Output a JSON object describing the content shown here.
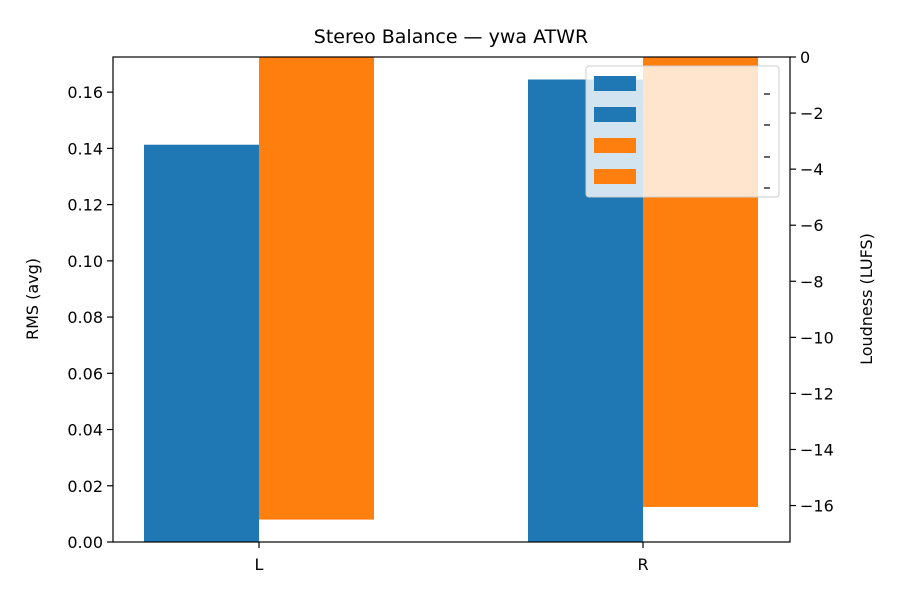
{
  "chart_data": {
    "type": "bar",
    "title": "Stereo Balance — ywa ATWR",
    "categories": [
      "L",
      "R"
    ],
    "left_axis": {
      "label": "RMS (avg)",
      "ylim": [
        0,
        0.1725
      ],
      "ticks": [
        0.0,
        0.02,
        0.04,
        0.06,
        0.08,
        0.1,
        0.12,
        0.14,
        0.16
      ],
      "tick_labels": [
        "0.00",
        "0.02",
        "0.04",
        "0.06",
        "0.08",
        "0.10",
        "0.12",
        "0.14",
        "0.16"
      ]
    },
    "right_axis": {
      "label": "Loudness (LUFS)",
      "ylim": [
        -17.3,
        0
      ],
      "ticks": [
        0,
        -2,
        -4,
        -6,
        -8,
        -10,
        -12,
        -14,
        -16
      ],
      "tick_labels": [
        "0",
        "−2",
        "−4",
        "−6",
        "−8",
        "−10",
        "−12",
        "−14",
        "−16"
      ]
    },
    "series": [
      {
        "axis": "left",
        "color": "#1f77b4",
        "values": [
          0.1413,
          0.1645
        ]
      },
      {
        "axis": "right",
        "color": "#ff7f0e",
        "values": [
          -16.5,
          -16.05
        ]
      }
    ],
    "legend": {
      "placement": "top-right",
      "entries": [
        {
          "color": "#1f77b4",
          "label": ""
        },
        {
          "color": "#1f77b4",
          "label": ""
        },
        {
          "color": "#ff7f0e",
          "label": ""
        },
        {
          "color": "#ff7f0e",
          "label": ""
        }
      ]
    },
    "grid": false
  }
}
